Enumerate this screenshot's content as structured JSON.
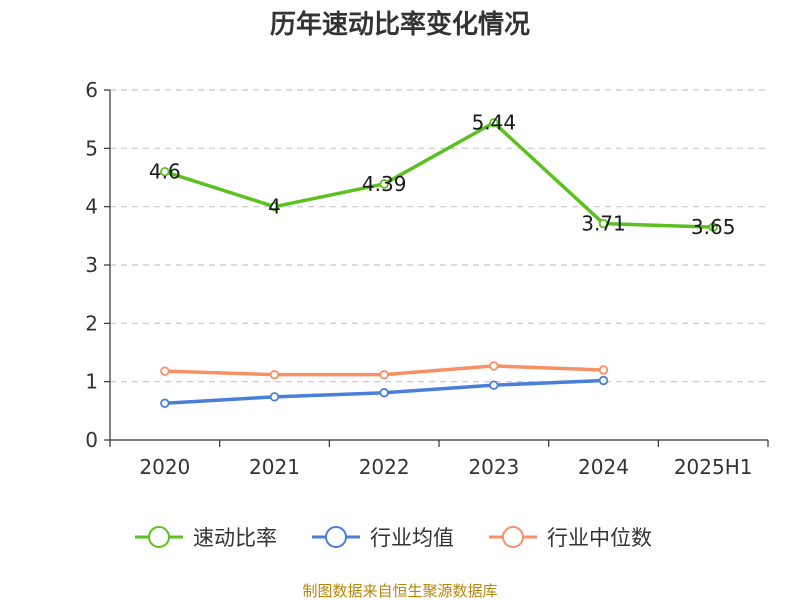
{
  "chart_data": {
    "type": "line",
    "title": "历年速动比率变化情况",
    "categories": [
      "2020",
      "2021",
      "2022",
      "2023",
      "2024",
      "2025H1"
    ],
    "yticks": [
      "0",
      "1",
      "2",
      "3",
      "4",
      "5",
      "6"
    ],
    "ylim": [
      0,
      6
    ],
    "grid": true,
    "legend_position": "bottom",
    "series": [
      {
        "name": "速动比率",
        "color": "#5cc120",
        "values": [
          4.6,
          4,
          4.39,
          5.44,
          3.71,
          3.65
        ],
        "labels": [
          "4.6",
          "4",
          "4.39",
          "5.44",
          "3.71",
          "3.65"
        ]
      },
      {
        "name": "行业均值",
        "color": "#4a7fd9",
        "values": [
          0.63,
          0.74,
          0.81,
          0.94,
          1.02,
          null
        ]
      },
      {
        "name": "行业中位数",
        "color": "#f59164",
        "values": [
          1.18,
          1.12,
          1.12,
          1.27,
          1.2,
          null
        ]
      }
    ]
  },
  "source": "制图数据来自恒生聚源数据库"
}
